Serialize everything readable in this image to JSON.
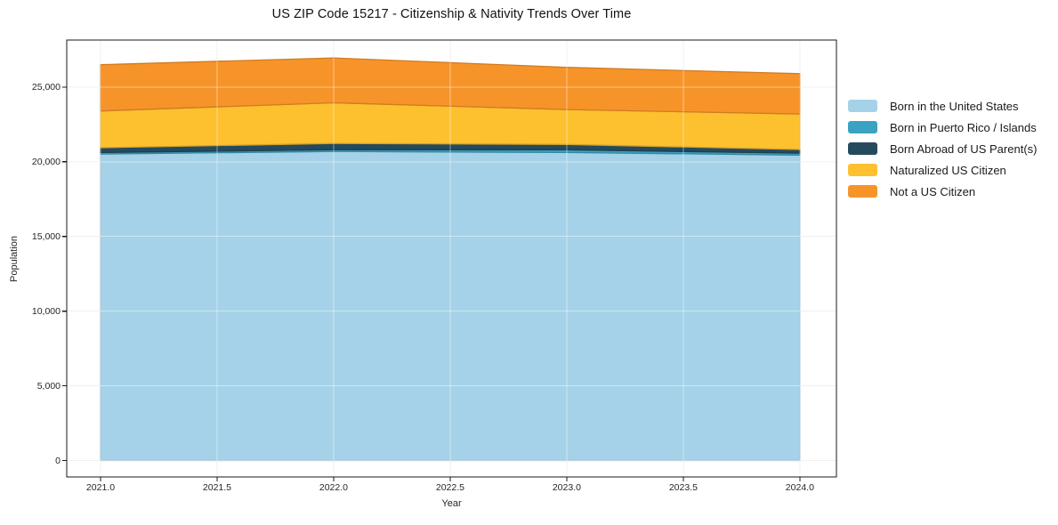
{
  "title": "US ZIP Code 15217 - Citizenship & Nativity Trends Over Time",
  "chart_data": {
    "type": "area",
    "stacked": true,
    "title": "US ZIP Code 15217 - Citizenship & Nativity Trends Over Time",
    "xlabel": "Year",
    "ylabel": "Population",
    "x": [
      2021,
      2022,
      2023,
      2024
    ],
    "series": [
      {
        "name": "Born in the United States",
        "color": "#a5d2e8",
        "values": [
          20520,
          20690,
          20620,
          20450
        ]
      },
      {
        "name": "Born in Puerto Rico / Islands",
        "color": "#3aa3c2",
        "values": [
          100,
          120,
          180,
          130
        ]
      },
      {
        "name": "Born Abroad of US Parent(s)",
        "color": "#254a5e",
        "values": [
          320,
          420,
          360,
          240
        ]
      },
      {
        "name": "Naturalized US Citizen",
        "color": "#fdc02f",
        "values": [
          2460,
          2720,
          2340,
          2380
        ]
      },
      {
        "name": "Not a US Citizen",
        "color": "#f79429",
        "values": [
          3100,
          3000,
          2820,
          2700
        ]
      }
    ],
    "stack_totals": [
      26500,
      26950,
      26320,
      25900
    ],
    "x_ticks": [
      {
        "v": 2021.0,
        "label": "2021.0"
      },
      {
        "v": 2021.5,
        "label": "2021.5"
      },
      {
        "v": 2022.0,
        "label": "2022.0"
      },
      {
        "v": 2022.5,
        "label": "2022.5"
      },
      {
        "v": 2023.0,
        "label": "2023.0"
      },
      {
        "v": 2023.5,
        "label": "2023.5"
      },
      {
        "v": 2024.0,
        "label": "2024.0"
      }
    ],
    "y_ticks": [
      {
        "v": 0,
        "label": "0"
      },
      {
        "v": 5000,
        "label": "5,000"
      },
      {
        "v": 10000,
        "label": "10,000"
      },
      {
        "v": 15000,
        "label": "15,000"
      },
      {
        "v": 20000,
        "label": "20,000"
      },
      {
        "v": 25000,
        "label": "25,000"
      }
    ],
    "xlim": [
      2020.855,
      2024.157
    ],
    "ylim": [
      -1100,
      28150
    ],
    "grid": true,
    "legend_position": "right",
    "colors": {
      "spine": "#1a1a1a",
      "grid_under": "#e4e4e4",
      "grid_over": "rgba(255,255,255,0.45)",
      "background": "#ffffff"
    }
  }
}
